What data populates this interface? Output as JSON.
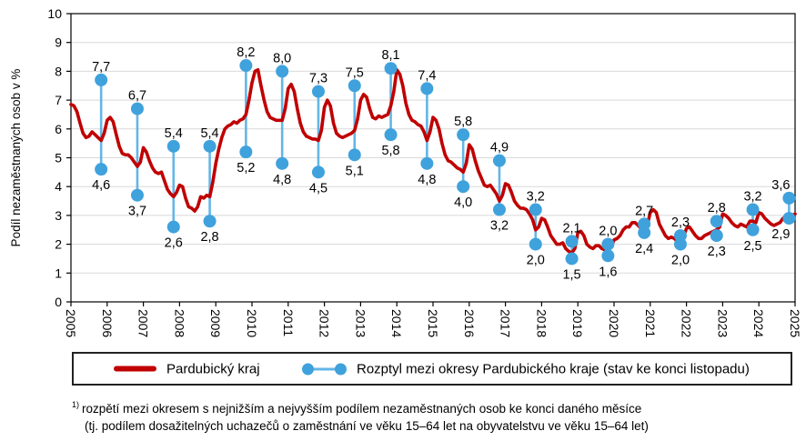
{
  "chart_data": {
    "type": "line",
    "title": "",
    "ylabel": "Podíl nezaměstnaných osob v %",
    "y_axis": {
      "min": 0,
      "max": 10,
      "tick_labels": [
        "0",
        "1",
        "2",
        "3",
        "4",
        "5",
        "6",
        "7",
        "8",
        "9",
        "10"
      ]
    },
    "x_axis": {
      "start_year": 2005,
      "end_year": 2025,
      "tick_labels": [
        "2005",
        "2006",
        "2007",
        "2008",
        "2009",
        "2010",
        "2011",
        "2012",
        "2013",
        "2014",
        "2015",
        "2016",
        "2017",
        "2018",
        "2019",
        "2020",
        "2021",
        "2022",
        "2023",
        "2024",
        "2025"
      ]
    },
    "grid": "horizontal",
    "legend_position": "bottom",
    "colors": {
      "line": "#C00000",
      "marker": "#3FA2DC",
      "stem": "#63B6E6",
      "grid": "#D9D9D9",
      "axis": "#000000",
      "text": "#000000"
    },
    "line_series": {
      "name": "Pardubický kraj",
      "start": "2005-01",
      "frequency": "monthly",
      "values": [
        6.85,
        6.8,
        6.6,
        6.2,
        5.85,
        5.7,
        5.75,
        5.9,
        5.8,
        5.7,
        5.6,
        5.85,
        6.3,
        6.4,
        6.25,
        5.8,
        5.4,
        5.15,
        5.1,
        5.1,
        5.0,
        4.85,
        4.7,
        4.85,
        5.35,
        5.2,
        4.9,
        4.65,
        4.5,
        4.45,
        4.5,
        4.2,
        3.9,
        3.75,
        3.65,
        3.8,
        4.05,
        4.0,
        3.6,
        3.3,
        3.25,
        3.15,
        3.3,
        3.65,
        3.6,
        3.7,
        3.65,
        4.15,
        4.8,
        5.3,
        5.7,
        6.0,
        6.1,
        6.15,
        6.25,
        6.2,
        6.3,
        6.35,
        6.5,
        7.0,
        7.6,
        8.0,
        8.05,
        7.5,
        7.0,
        6.6,
        6.4,
        6.35,
        6.3,
        6.3,
        6.3,
        6.7,
        7.4,
        7.55,
        7.3,
        6.7,
        6.2,
        5.9,
        5.75,
        5.7,
        5.65,
        5.65,
        5.6,
        5.95,
        6.75,
        7.0,
        6.8,
        6.2,
        5.85,
        5.75,
        5.7,
        5.75,
        5.8,
        5.85,
        5.95,
        6.35,
        7.0,
        7.2,
        7.1,
        6.7,
        6.4,
        6.35,
        6.45,
        6.4,
        6.45,
        6.5,
        6.8,
        7.3,
        8.05,
        7.9,
        7.5,
        6.9,
        6.5,
        6.3,
        6.25,
        6.15,
        6.1,
        5.9,
        5.6,
        5.9,
        6.4,
        6.3,
        6.0,
        5.5,
        5.1,
        4.9,
        4.85,
        4.75,
        4.65,
        4.6,
        4.5,
        4.8,
        5.45,
        5.3,
        4.9,
        4.55,
        4.3,
        4.05,
        4.0,
        4.05,
        3.9,
        3.75,
        3.5,
        3.7,
        4.1,
        4.05,
        3.8,
        3.5,
        3.35,
        3.25,
        3.25,
        3.2,
        3.05,
        2.85,
        2.5,
        2.6,
        2.9,
        2.85,
        2.6,
        2.3,
        2.15,
        2.0,
        2.0,
        2.05,
        1.85,
        1.75,
        1.7,
        1.85,
        2.4,
        2.45,
        2.3,
        2.0,
        1.9,
        1.85,
        1.95,
        1.95,
        1.85,
        1.8,
        1.8,
        1.9,
        2.15,
        2.2,
        2.3,
        2.5,
        2.6,
        2.6,
        2.75,
        2.75,
        2.65,
        2.55,
        2.5,
        2.65,
        3.1,
        3.2,
        3.1,
        2.7,
        2.5,
        2.3,
        2.2,
        2.25,
        2.2,
        2.1,
        2.1,
        2.25,
        2.55,
        2.6,
        2.45,
        2.3,
        2.2,
        2.2,
        2.3,
        2.35,
        2.4,
        2.45,
        2.5,
        2.6,
        3.05,
        3.0,
        2.9,
        2.75,
        2.65,
        2.6,
        2.7,
        2.65,
        2.6,
        2.8,
        2.8,
        2.75,
        3.1,
        3.05,
        2.9,
        2.8,
        2.7,
        2.65,
        2.7,
        2.75,
        2.9,
        2.95,
        2.95,
        3.0,
        3.05
      ]
    },
    "range_series": {
      "name": "Rozptyl mezi okresy Pardubického kraje (stav ke konci listopadu)",
      "month": 11,
      "points": [
        {
          "year": 2005,
          "high": 7.7,
          "low": 4.6,
          "high_label": "7,7",
          "low_label": "4,6"
        },
        {
          "year": 2006,
          "high": 6.7,
          "low": 3.7,
          "high_label": "6,7",
          "low_label": "3,7"
        },
        {
          "year": 2007,
          "high": 5.4,
          "low": 2.6,
          "high_label": "5,4",
          "low_label": "2,6"
        },
        {
          "year": 2008,
          "high": 5.4,
          "low": 2.8,
          "high_label": "5,4",
          "low_label": "2,8"
        },
        {
          "year": 2009,
          "high": 8.2,
          "low": 5.2,
          "high_label": "8,2",
          "low_label": "5,2"
        },
        {
          "year": 2010,
          "high": 8.0,
          "low": 4.8,
          "high_label": "8,0",
          "low_label": "4,8"
        },
        {
          "year": 2011,
          "high": 7.3,
          "low": 4.5,
          "high_label": "7,3",
          "low_label": "4,5"
        },
        {
          "year": 2012,
          "high": 7.5,
          "low": 5.1,
          "high_label": "7,5",
          "low_label": "5,1"
        },
        {
          "year": 2013,
          "high": 8.1,
          "low": 5.8,
          "high_label": "8,1",
          "low_label": "5,8"
        },
        {
          "year": 2014,
          "high": 7.4,
          "low": 4.8,
          "high_label": "7,4",
          "low_label": "4,8"
        },
        {
          "year": 2015,
          "high": 5.8,
          "low": 4.0,
          "high_label": "5,8",
          "low_label": "4,0"
        },
        {
          "year": 2016,
          "high": 4.9,
          "low": 3.2,
          "high_label": "4,9",
          "low_label": "3,2"
        },
        {
          "year": 2017,
          "high": 3.2,
          "low": 2.0,
          "high_label": "3,2",
          "low_label": "2,0"
        },
        {
          "year": 2018,
          "high": 2.1,
          "low": 1.5,
          "high_label": "2,1",
          "low_label": "1,5"
        },
        {
          "year": 2019,
          "high": 2.0,
          "low": 1.6,
          "high_label": "2,0",
          "low_label": "1,6"
        },
        {
          "year": 2020,
          "high": 2.7,
          "low": 2.4,
          "high_label": "2,7",
          "low_label": "2,4"
        },
        {
          "year": 2021,
          "high": 2.3,
          "low": 2.0,
          "high_label": "2,3",
          "low_label": "2,0"
        },
        {
          "year": 2022,
          "high": 2.8,
          "low": 2.3,
          "high_label": "2,8",
          "low_label": "2,3"
        },
        {
          "year": 2023,
          "high": 3.2,
          "low": 2.5,
          "high_label": "3,2",
          "low_label": "2,5"
        },
        {
          "year": 2024,
          "high": 3.6,
          "low": 2.9,
          "high_label": "3,6",
          "low_label": "2,9"
        }
      ]
    }
  },
  "legend": {
    "items": [
      {
        "label": "Pardubický kraj"
      },
      {
        "label": "Rozptyl mezi okresy Pardubického kraje (stav ke konci listopadu)"
      }
    ]
  },
  "footnote": {
    "marker": "1)",
    "line1": "rozpětí mezi okresem s nejnižším a nejvyšším podílem nezaměstnaných osob ke konci daného měsíce",
    "line2": "(tj. podílem dosažitelných uchazečů o zaměstnání ve věku 15–64 let na obyvatelstvu ve věku 15–64 let)"
  }
}
